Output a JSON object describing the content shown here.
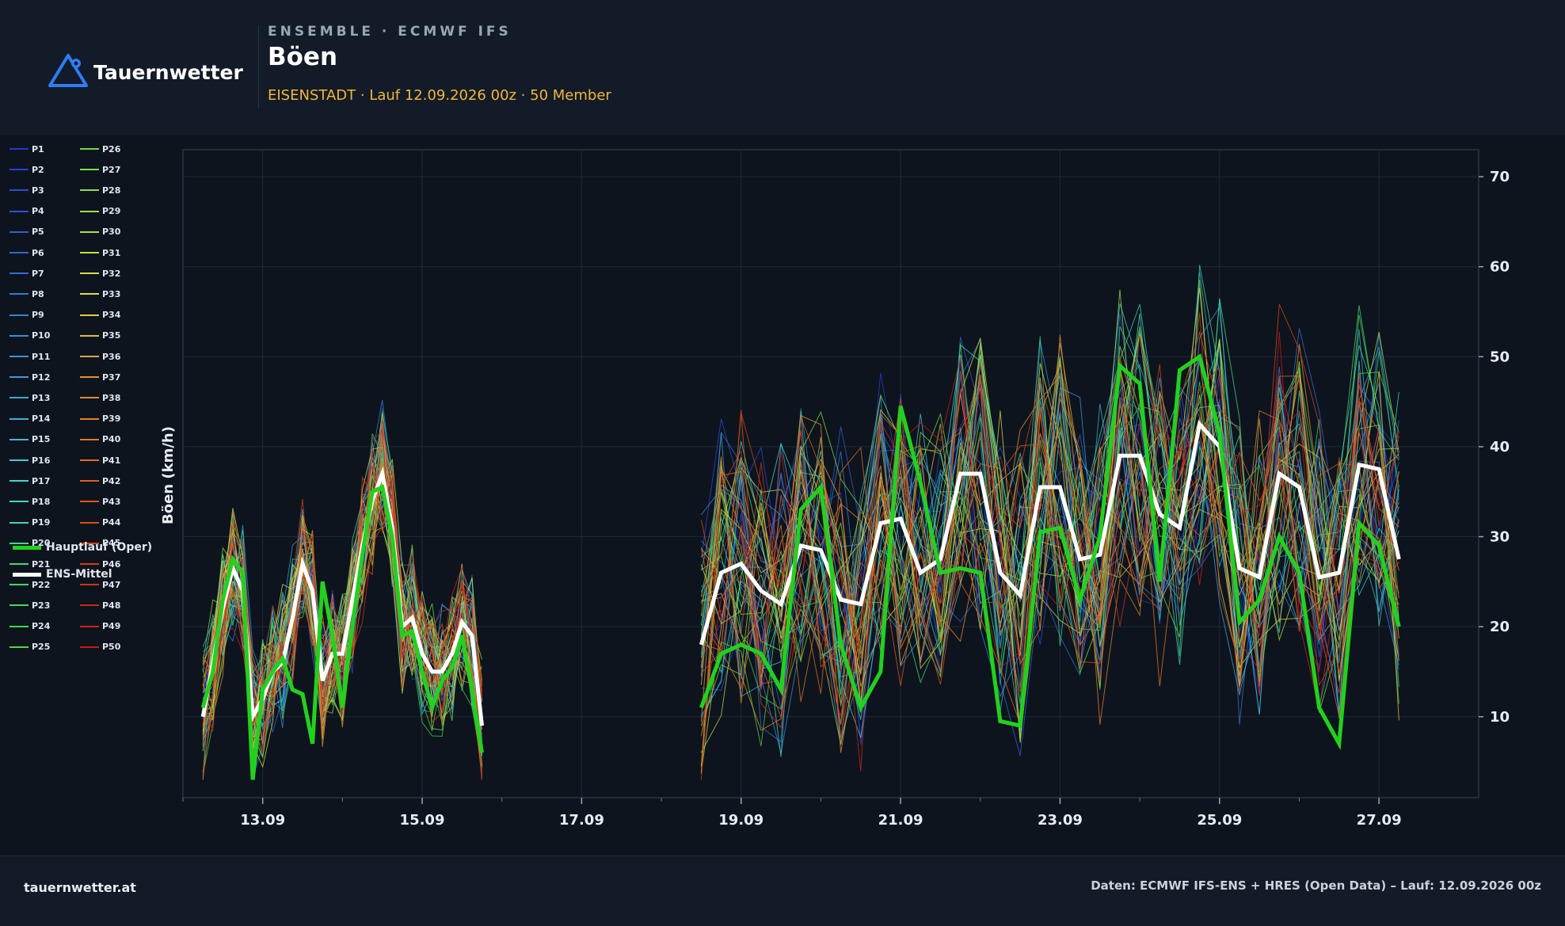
{
  "brand": {
    "name": "Tauernwetter",
    "icon": "triangle-pin-icon"
  },
  "header": {
    "kicker": "ENSEMBLE · ECMWF IFS",
    "title": "Böen",
    "subtitle": "EISENSTADT · Lauf 12.09.2026 00z · 50 Member"
  },
  "footer": {
    "left": "tauernwetter.at",
    "right": "Daten: ECMWF IFS-ENS + HRES (Open Data) – Lauf: 12.09.2026 00z"
  },
  "legend": {
    "members": [
      "P1",
      "P2",
      "P3",
      "P4",
      "P5",
      "P6",
      "P7",
      "P8",
      "P9",
      "P10",
      "P11",
      "P12",
      "P13",
      "P14",
      "P15",
      "P16",
      "P17",
      "P18",
      "P19",
      "P20",
      "P21",
      "P22",
      "P23",
      "P24",
      "P25",
      "P26",
      "P27",
      "P28",
      "P29",
      "P30",
      "P31",
      "P32",
      "P33",
      "P34",
      "P35",
      "P36",
      "P37",
      "P38",
      "P39",
      "P40",
      "P41",
      "P42",
      "P43",
      "P44",
      "P45",
      "P46",
      "P47",
      "P48",
      "P49",
      "P50"
    ],
    "oper_label": "Hauptlauf (Oper)",
    "mean_label": "ENS-Mittel"
  },
  "colors": {
    "oper": "#22d11e",
    "mean": "#ffffff",
    "background": "#0e141d",
    "accent": "#f2b63a"
  },
  "chart_data": {
    "type": "line",
    "ylabel": "Böen (km/h)",
    "xlabel": "",
    "x_ticks": [
      "13.09",
      "15.09",
      "17.09",
      "19.09",
      "21.09",
      "23.09",
      "25.09",
      "27.09"
    ],
    "y_ticks": [
      10,
      20,
      30,
      40,
      50,
      60,
      70
    ],
    "xlim": [
      "2026-09-12T00",
      "2026-09-28T06"
    ],
    "ylim": [
      1,
      73
    ],
    "grid": true,
    "member_count": 50,
    "segments": [
      {
        "times": [
          "2026-09-12T06",
          "2026-09-12T09",
          "2026-09-12T12",
          "2026-09-12T15",
          "2026-09-12T18",
          "2026-09-12T21",
          "2026-09-13T00",
          "2026-09-13T03",
          "2026-09-13T06",
          "2026-09-13T09",
          "2026-09-13T12",
          "2026-09-13T15",
          "2026-09-13T18",
          "2026-09-13T21",
          "2026-09-14T00",
          "2026-09-14T03",
          "2026-09-14T06",
          "2026-09-14T09",
          "2026-09-14T12",
          "2026-09-14T15",
          "2026-09-14T18",
          "2026-09-14T21",
          "2026-09-15T00",
          "2026-09-15T03",
          "2026-09-15T06",
          "2026-09-15T09",
          "2026-09-15T12",
          "2026-09-15T15",
          "2026-09-15T18",
          "2026-09-15T21"
        ]
      },
      {
        "times": [
          "2026-09-18T12",
          "2026-09-18T18",
          "2026-09-19T00",
          "2026-09-19T06",
          "2026-09-19T12",
          "2026-09-19T18",
          "2026-09-20T00",
          "2026-09-20T06",
          "2026-09-20T12",
          "2026-09-20T18",
          "2026-09-21T00",
          "2026-09-21T06",
          "2026-09-21T12",
          "2026-09-21T18",
          "2026-09-22T00",
          "2026-09-22T06",
          "2026-09-22T12",
          "2026-09-22T18",
          "2026-09-23T00",
          "2026-09-23T06",
          "2026-09-23T12",
          "2026-09-23T18",
          "2026-09-24T00",
          "2026-09-24T06",
          "2026-09-24T12",
          "2026-09-24T18",
          "2026-09-25T00",
          "2026-09-25T06",
          "2026-09-25T12",
          "2026-09-25T18",
          "2026-09-26T00",
          "2026-09-26T06",
          "2026-09-26T12",
          "2026-09-26T18",
          "2026-09-27T00",
          "2026-09-27T06"
        ]
      }
    ],
    "series": [
      {
        "name": "Hauptlauf (Oper)",
        "color": "#22d11e",
        "segments": [
          [
            11,
            15,
            23,
            27.5,
            26,
            3,
            13,
            15,
            16.5,
            13,
            12.5,
            7,
            25,
            19,
            11,
            20,
            28,
            35,
            35.5,
            30,
            19,
            19.5,
            15,
            11,
            14,
            15.5,
            19,
            13,
            6,
            null
          ],
          [
            11,
            17,
            18,
            17,
            13,
            33,
            35.5,
            18,
            11,
            15,
            44.5,
            36,
            26,
            26.5,
            26,
            9.5,
            9,
            30.5,
            31,
            23,
            30,
            49,
            47,
            25,
            48.5,
            50,
            41.5,
            20.5,
            23,
            30,
            26,
            11,
            7,
            31.5,
            29,
            20
          ]
        ]
      },
      {
        "name": "ENS-Mittel",
        "color": "#ffffff",
        "segments": [
          [
            10,
            16,
            22,
            26.5,
            24,
            10,
            12,
            15,
            16,
            21,
            27,
            24,
            14,
            17,
            17,
            23,
            29,
            34,
            37,
            31,
            20,
            21,
            17,
            15,
            15,
            17,
            20.5,
            19,
            9,
            null
          ],
          [
            18,
            26,
            27,
            24,
            22.5,
            29,
            28.5,
            23,
            22.5,
            31.5,
            32,
            26,
            27.5,
            37,
            37,
            26,
            23.5,
            35.5,
            35.5,
            27.5,
            28,
            39,
            39,
            32.5,
            31,
            42.5,
            40,
            26.5,
            25.5,
            37,
            35.5,
            25.5,
            26,
            38,
            37.5,
            27.5
          ]
        ]
      }
    ]
  }
}
